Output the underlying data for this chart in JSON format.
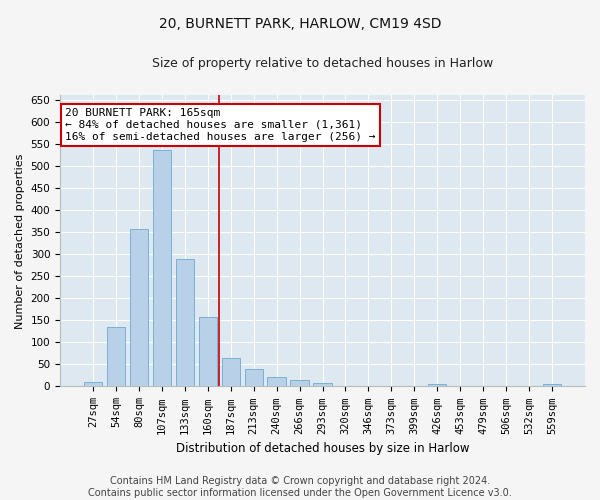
{
  "title1": "20, BURNETT PARK, HARLOW, CM19 4SD",
  "title2": "Size of property relative to detached houses in Harlow",
  "xlabel": "Distribution of detached houses by size in Harlow",
  "ylabel": "Number of detached properties",
  "categories": [
    "27sqm",
    "54sqm",
    "80sqm",
    "107sqm",
    "133sqm",
    "160sqm",
    "187sqm",
    "213sqm",
    "240sqm",
    "266sqm",
    "293sqm",
    "320sqm",
    "346sqm",
    "373sqm",
    "399sqm",
    "426sqm",
    "453sqm",
    "479sqm",
    "506sqm",
    "532sqm",
    "559sqm"
  ],
  "values": [
    10,
    135,
    358,
    535,
    290,
    157,
    65,
    40,
    22,
    15,
    7,
    0,
    0,
    0,
    0,
    5,
    0,
    0,
    0,
    0,
    5
  ],
  "bar_color": "#b8d0e8",
  "bar_edge_color": "#6aaad4",
  "vline_x": 5.5,
  "vline_color": "#cc0000",
  "annotation_text": "20 BURNETT PARK: 165sqm\n← 84% of detached houses are smaller (1,361)\n16% of semi-detached houses are larger (256) →",
  "annotation_box_facecolor": "#ffffff",
  "annotation_box_edgecolor": "#cc0000",
  "ylim": [
    0,
    660
  ],
  "yticks": [
    0,
    50,
    100,
    150,
    200,
    250,
    300,
    350,
    400,
    450,
    500,
    550,
    600,
    650
  ],
  "footer1": "Contains HM Land Registry data © Crown copyright and database right 2024.",
  "footer2": "Contains public sector information licensed under the Open Government Licence v3.0.",
  "fig_facecolor": "#f5f5f5",
  "plot_bg_color": "#dde8f0",
  "title1_fontsize": 10,
  "title2_fontsize": 9,
  "xlabel_fontsize": 8.5,
  "ylabel_fontsize": 8,
  "tick_fontsize": 7.5,
  "annotation_fontsize": 8,
  "footer_fontsize": 7
}
